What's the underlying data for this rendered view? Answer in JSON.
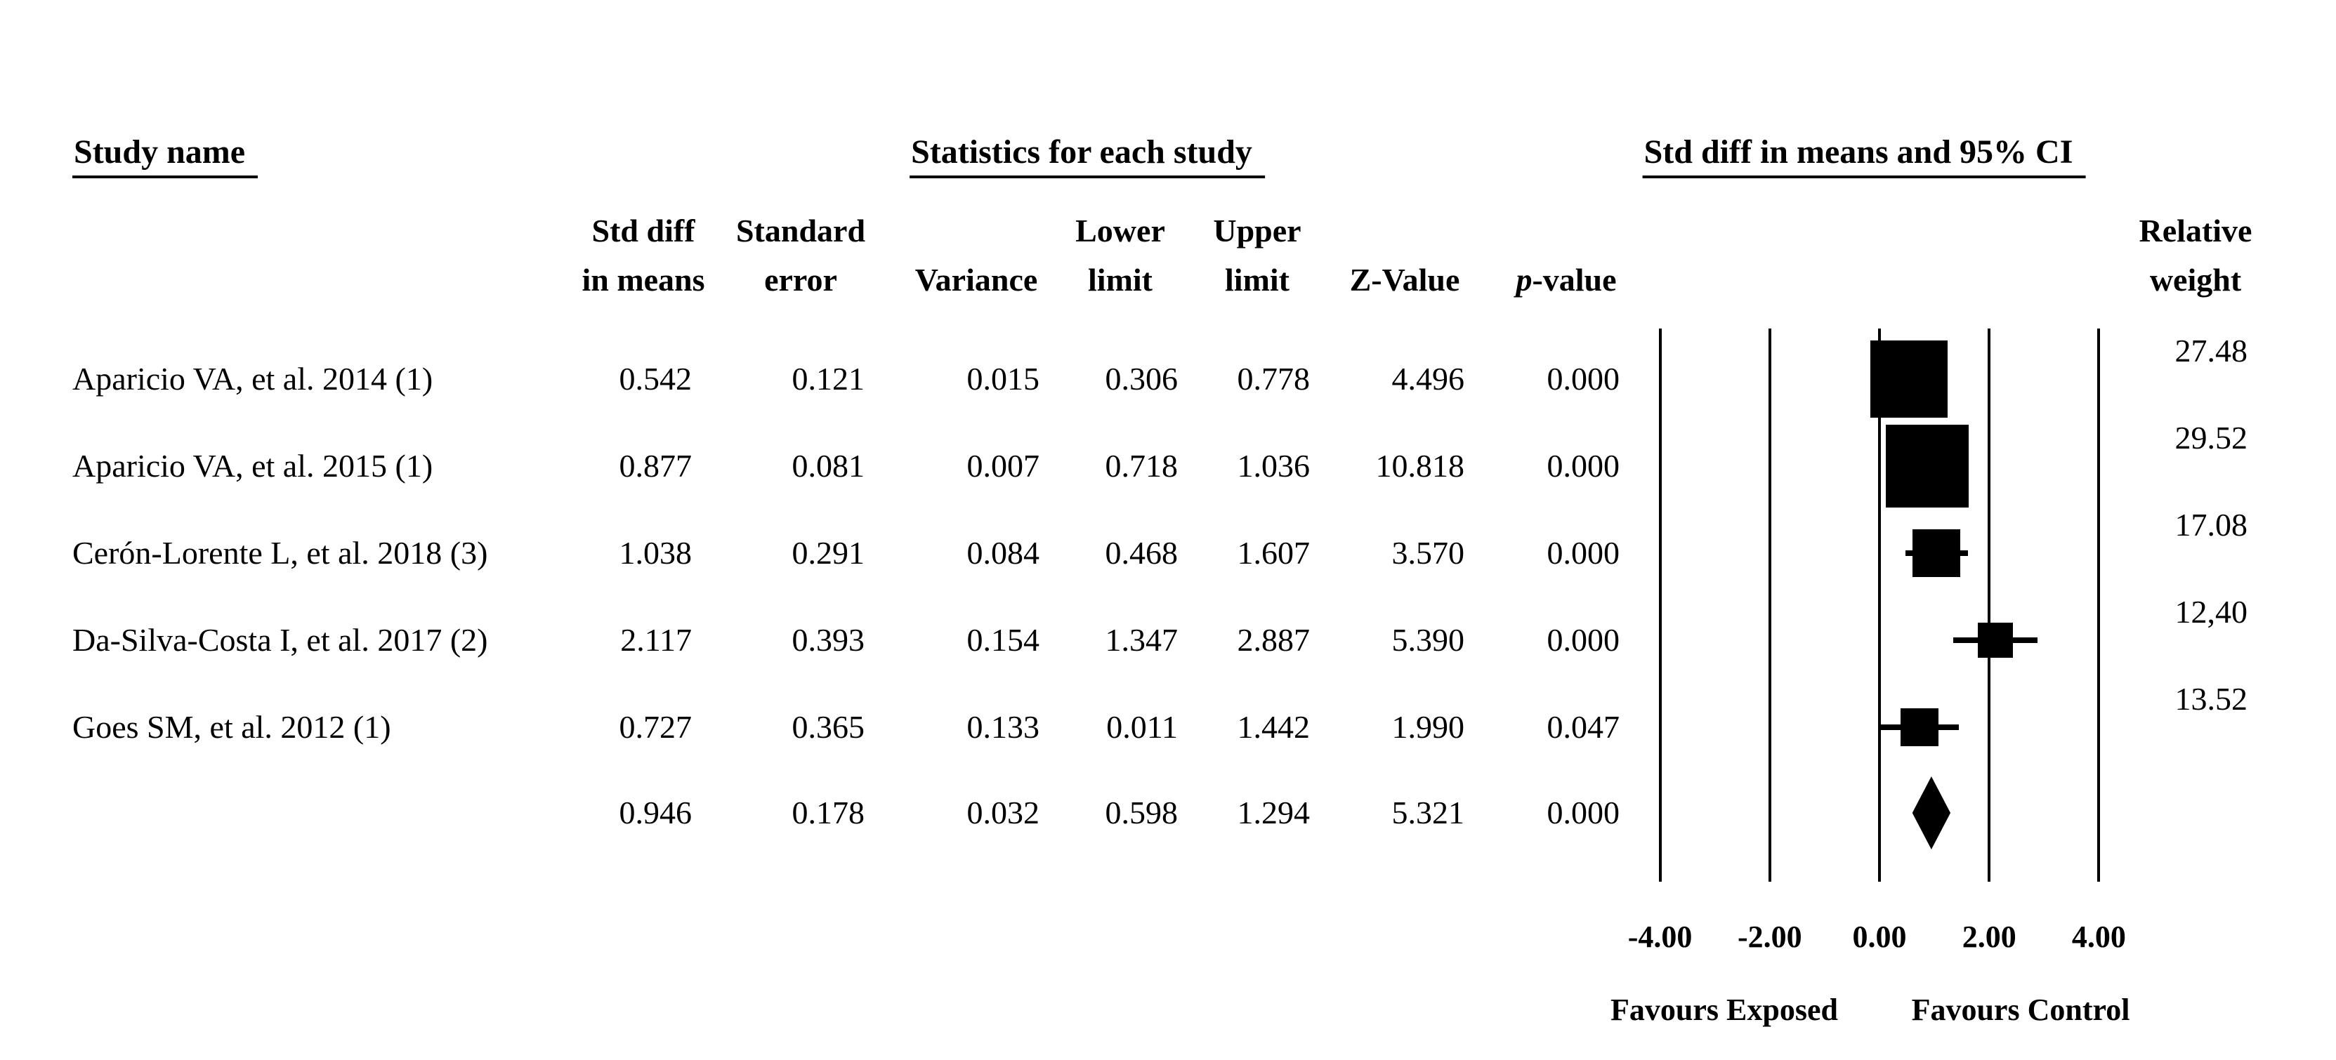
{
  "title_row": {
    "study_name": "Study name",
    "statistics": "Statistics for each study",
    "ci": "Std diff in means and 95% CI"
  },
  "column_headers": {
    "std_diff_line1": "Std diff",
    "std_diff_line2": "in means",
    "standard_line1": "Standard",
    "standard_line2": "error",
    "variance": "Variance",
    "lower_line1": "Lower",
    "lower_line2": "limit",
    "upper_line1": "Upper",
    "upper_line2": "limit",
    "z_value": "Z-Value",
    "p_value": "p-value",
    "relative_line1": "Relative",
    "relative_line2": "weight"
  },
  "chart_data": {
    "type": "forest",
    "title": "Std diff in means and 95% CI",
    "x_axis": {
      "tick_labels": [
        "-4.00",
        "-2.00",
        "0.00",
        "2.00",
        "4.00"
      ],
      "tick_values": [
        -4,
        -2,
        0,
        2,
        4
      ],
      "xlim": [
        -4,
        4
      ]
    },
    "footer": {
      "left": "Favours Exposed",
      "right": "Favours Control"
    },
    "studies": [
      {
        "name": "Aparicio VA, et al. 2014 (1)",
        "std_diff": "0.542",
        "standard_error": "0.121",
        "variance": "0.015",
        "lower_limit": "0.306",
        "upper_limit": "0.778",
        "z_value": "4.496",
        "p_value": "0.000",
        "relative_weight": "27.48",
        "point": 0.542,
        "lower": 0.306,
        "upper": 0.778,
        "weight": 27.48
      },
      {
        "name": "Aparicio VA, et al. 2015 (1)",
        "std_diff": "0.877",
        "standard_error": "0.081",
        "variance": "0.007",
        "lower_limit": "0.718",
        "upper_limit": "1.036",
        "z_value": "10.818",
        "p_value": "0.000",
        "relative_weight": "29.52",
        "point": 0.877,
        "lower": 0.718,
        "upper": 1.036,
        "weight": 29.52
      },
      {
        "name": "Cerón-Lorente L, et al. 2018 (3)",
        "std_diff": "1.038",
        "standard_error": "0.291",
        "variance": "0.084",
        "lower_limit": "0.468",
        "upper_limit": "1.607",
        "z_value": "3.570",
        "p_value": "0.000",
        "relative_weight": "17.08",
        "point": 1.038,
        "lower": 0.468,
        "upper": 1.607,
        "weight": 17.08
      },
      {
        "name": "Da-Silva-Costa I, et al. 2017 (2)",
        "std_diff": "2.117",
        "standard_error": "0.393",
        "variance": "0.154",
        "lower_limit": "1.347",
        "upper_limit": "2.887",
        "z_value": "5.390",
        "p_value": "0.000",
        "relative_weight": "12,40",
        "point": 2.117,
        "lower": 1.347,
        "upper": 2.887,
        "weight": 12.4
      },
      {
        "name": "Goes SM, et al. 2012 (1)",
        "std_diff": "0.727",
        "standard_error": "0.365",
        "variance": "0.133",
        "lower_limit": "0.011",
        "upper_limit": "1.442",
        "z_value": "1.990",
        "p_value": "0.047",
        "relative_weight": "13.52",
        "point": 0.727,
        "lower": 0.011,
        "upper": 1.442,
        "weight": 13.52
      }
    ],
    "summary": {
      "std_diff": "0.946",
      "standard_error": "0.178",
      "variance": "0.032",
      "lower_limit": "0.598",
      "upper_limit": "1.294",
      "z_value": "5.321",
      "p_value": "0.000",
      "point": 0.946,
      "lower": 0.598,
      "upper": 1.294
    }
  }
}
